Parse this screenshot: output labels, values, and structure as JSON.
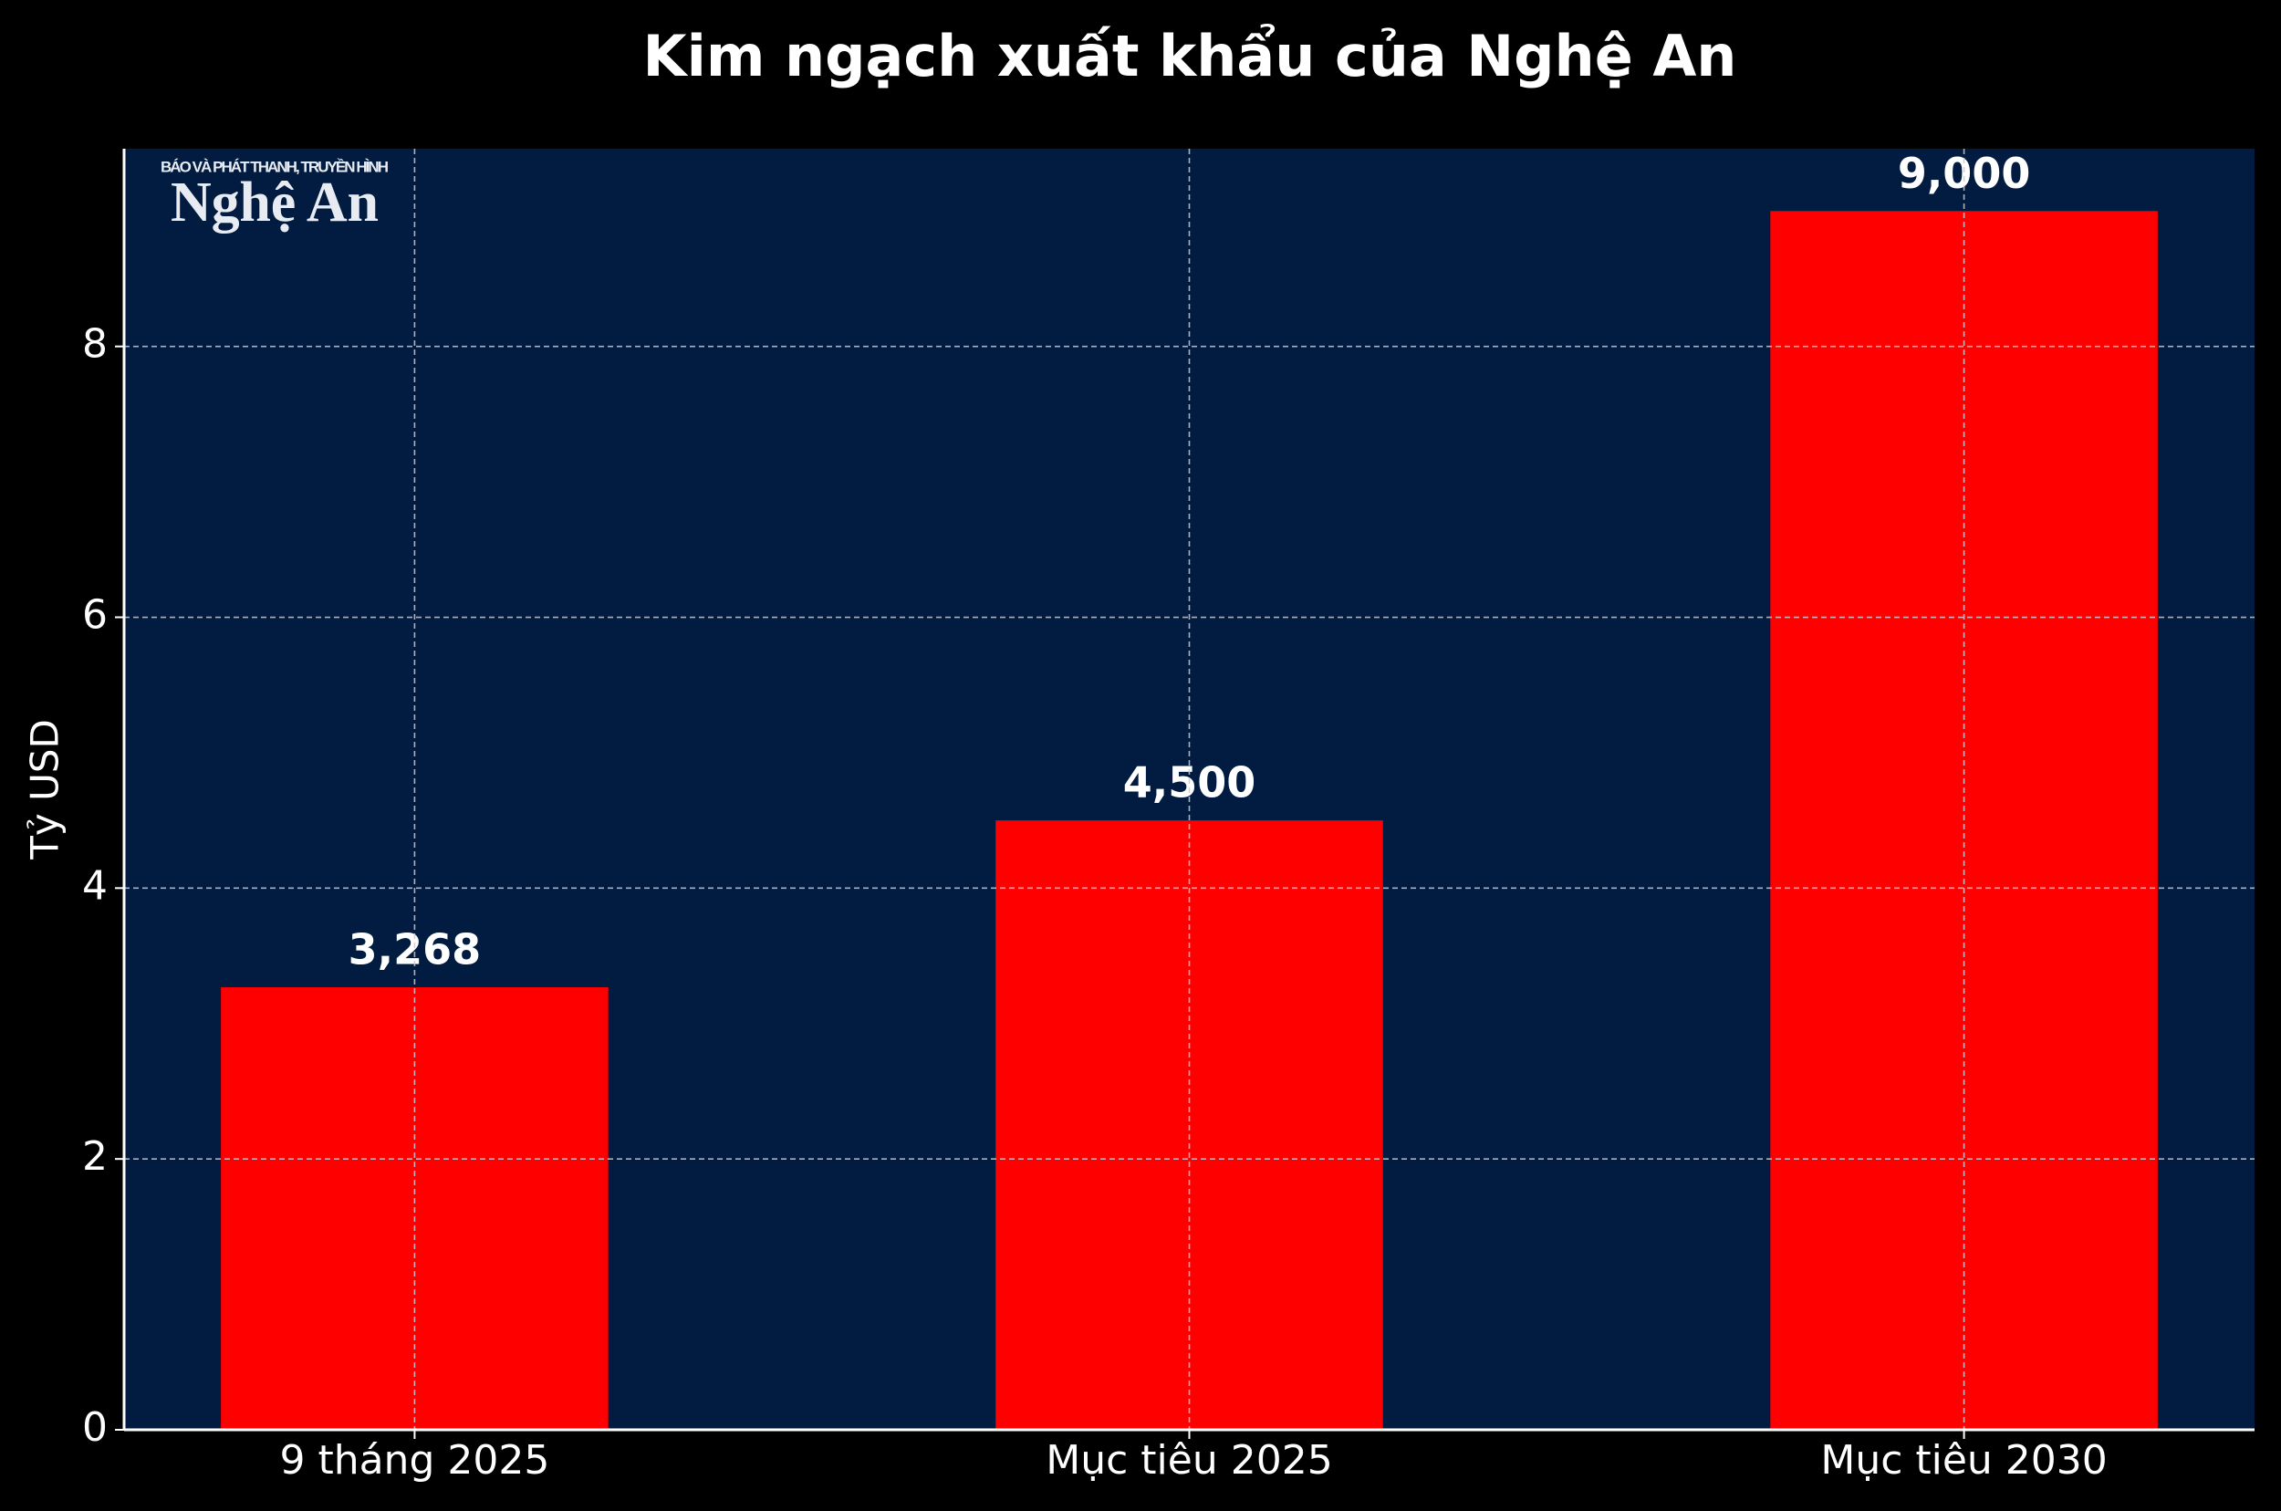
{
  "chart_data": {
    "type": "bar",
    "title": "Kim ngạch xuất khẩu của Nghệ An",
    "y_label": "Tỷ USD",
    "categories": [
      "9 tháng 2025",
      "Mục tiêu 2025",
      "Mục tiêu 2030"
    ],
    "values": [
      3.268,
      4.5,
      9.0
    ],
    "value_labels": [
      "3,268",
      "4,500",
      "9,000"
    ],
    "color": "#ff0000",
    "ylim": [
      0,
      9.46
    ],
    "yticks": [
      0,
      2,
      4,
      6,
      8
    ],
    "grid": true,
    "logo": {
      "tagline": "BÁO VÀ PHÁT THANH, TRUYỀN HÌNH",
      "name": "Nghệ An"
    }
  }
}
